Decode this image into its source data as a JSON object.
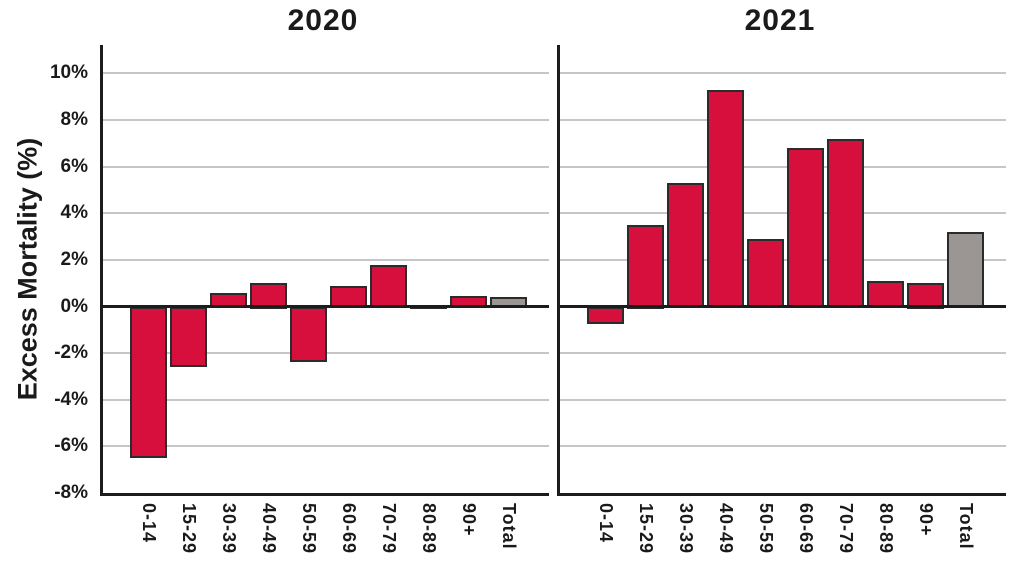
{
  "chart_data": {
    "type": "bar",
    "title": "",
    "ylabel": "Excess Mortality (%)",
    "ylim": [
      -8,
      11
    ],
    "grid": true,
    "legend": false,
    "yticks": [
      {
        "label": "10%",
        "value": 10
      },
      {
        "label": "8%",
        "value": 8
      },
      {
        "label": "6%",
        "value": 6
      },
      {
        "label": "4%",
        "value": 4
      },
      {
        "label": "2%",
        "value": 2
      },
      {
        "label": "0%",
        "value": 0
      },
      {
        "label": "-2%",
        "value": -2
      },
      {
        "label": "-4%",
        "value": -4
      },
      {
        "label": "-6%",
        "value": -6
      },
      {
        "label": "-8%",
        "value": -8
      }
    ],
    "categories": [
      "0-14",
      "15-29",
      "30-39",
      "40-49",
      "50-59",
      "60-69",
      "70-79",
      "80-89",
      "90+",
      "Total"
    ],
    "panels": [
      {
        "title": "2020",
        "values": [
          -6.4,
          -2.5,
          0.6,
          1.0,
          -2.3,
          0.9,
          1.8,
          0.0,
          0.45,
          0.4
        ]
      },
      {
        "title": "2021",
        "values": [
          -0.65,
          3.5,
          5.3,
          9.3,
          2.9,
          6.8,
          7.2,
          1.1,
          1.0,
          3.2
        ]
      }
    ],
    "colors": {
      "age_group_bar": "#d60f3c",
      "total_bar": "#9b9693",
      "bar_outline": "#2b2b2b",
      "gridline": "#c6c6c6",
      "axis": "#1c1c1c",
      "text": "#1a1a1a"
    }
  }
}
